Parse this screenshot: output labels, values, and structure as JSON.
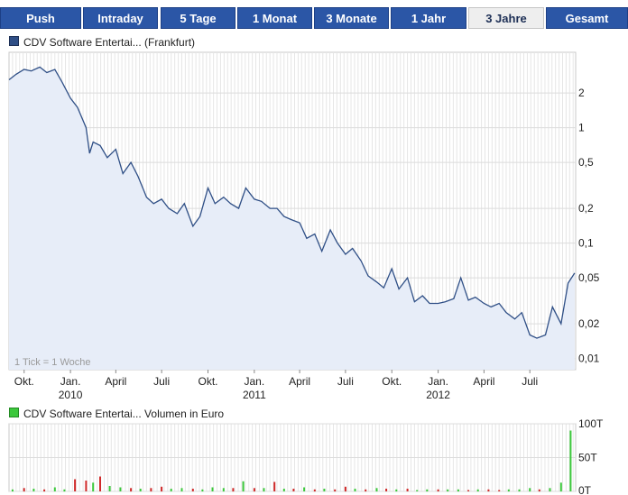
{
  "tabs": [
    "Push",
    "Intraday",
    "5 Tage",
    "1 Monat",
    "3 Monate",
    "1 Jahr",
    "3 Jahre",
    "Gesamt"
  ],
  "active_tab": "3 Jahre",
  "price_legend": "CDV Software Entertai... (Frankfurt)",
  "volume_legend": "CDV Software Entertai... Volumen in Euro",
  "tick_note": "1 Tick = 1 Woche",
  "colors": {
    "tab_bg": "#2b56a6",
    "line": "#2f4f86",
    "area": "#e7edf8",
    "vol_up": "#3cc83c",
    "vol_down": "#d02a2a"
  },
  "chart_data": [
    {
      "type": "area",
      "title": "CDV Software Entertai... (Frankfurt)",
      "y_scale": "log",
      "ylim": [
        0.008,
        4.5
      ],
      "y_ticks": [
        2,
        1,
        0.5,
        0.2,
        0.1,
        0.05,
        0.02,
        0.01
      ],
      "y_tick_labels": [
        "2",
        "1",
        "0,5",
        "0,2",
        "0,1",
        "0,05",
        "0,02",
        "0,01"
      ],
      "x_ticks": [
        {
          "label": "Okt.",
          "year": "",
          "date": "2009-10-01"
        },
        {
          "label": "Jan.",
          "year": "2010",
          "date": "2010-01-01"
        },
        {
          "label": "April",
          "year": "",
          "date": "2010-04-01"
        },
        {
          "label": "Juli",
          "year": "",
          "date": "2010-07-01"
        },
        {
          "label": "Okt.",
          "year": "",
          "date": "2010-10-01"
        },
        {
          "label": "Jan.",
          "year": "2011",
          "date": "2011-01-01"
        },
        {
          "label": "April",
          "year": "",
          "date": "2011-04-01"
        },
        {
          "label": "Juli",
          "year": "",
          "date": "2011-07-01"
        },
        {
          "label": "Okt.",
          "year": "",
          "date": "2011-10-01"
        },
        {
          "label": "Jan.",
          "year": "2012",
          "date": "2012-01-01"
        },
        {
          "label": "April",
          "year": "",
          "date": "2012-04-01"
        },
        {
          "label": "Juli",
          "year": "",
          "date": "2012-07-01"
        }
      ],
      "xlim": [
        "2009-09-01",
        "2012-09-30"
      ],
      "grid": true,
      "x": [
        "2009-09-01",
        "2009-09-15",
        "2009-10-01",
        "2009-10-15",
        "2009-11-01",
        "2009-11-15",
        "2009-12-01",
        "2009-12-15",
        "2010-01-01",
        "2010-01-15",
        "2010-02-01",
        "2010-02-08",
        "2010-02-15",
        "2010-03-01",
        "2010-03-15",
        "2010-04-01",
        "2010-04-15",
        "2010-05-01",
        "2010-05-15",
        "2010-06-01",
        "2010-06-15",
        "2010-07-01",
        "2010-07-15",
        "2010-08-01",
        "2010-08-15",
        "2010-09-01",
        "2010-09-15",
        "2010-10-01",
        "2010-10-15",
        "2010-11-01",
        "2010-11-15",
        "2010-12-01",
        "2010-12-15",
        "2011-01-01",
        "2011-01-15",
        "2011-02-01",
        "2011-02-15",
        "2011-03-01",
        "2011-03-15",
        "2011-04-01",
        "2011-04-15",
        "2011-05-01",
        "2011-05-15",
        "2011-06-01",
        "2011-06-15",
        "2011-07-01",
        "2011-07-15",
        "2011-08-01",
        "2011-08-15",
        "2011-09-01",
        "2011-09-15",
        "2011-10-01",
        "2011-10-15",
        "2011-11-01",
        "2011-11-15",
        "2011-12-01",
        "2011-12-15",
        "2012-01-01",
        "2012-01-15",
        "2012-02-01",
        "2012-02-15",
        "2012-03-01",
        "2012-03-15",
        "2012-04-01",
        "2012-04-15",
        "2012-05-01",
        "2012-05-15",
        "2012-06-01",
        "2012-06-15",
        "2012-07-01",
        "2012-07-15",
        "2012-08-01",
        "2012-08-15",
        "2012-09-01",
        "2012-09-15",
        "2012-09-28"
      ],
      "series": [
        {
          "values": [
            2.6,
            2.9,
            3.2,
            3.1,
            3.35,
            3.0,
            3.2,
            2.5,
            1.8,
            1.5,
            1.0,
            0.6,
            0.75,
            0.7,
            0.55,
            0.65,
            0.4,
            0.5,
            0.38,
            0.25,
            0.22,
            0.24,
            0.2,
            0.18,
            0.22,
            0.14,
            0.17,
            0.3,
            0.22,
            0.25,
            0.22,
            0.2,
            0.3,
            0.24,
            0.23,
            0.2,
            0.2,
            0.17,
            0.16,
            0.15,
            0.11,
            0.12,
            0.085,
            0.13,
            0.1,
            0.08,
            0.09,
            0.07,
            0.052,
            0.046,
            0.041,
            0.06,
            0.04,
            0.05,
            0.031,
            0.035,
            0.03,
            0.03,
            0.031,
            0.033,
            0.05,
            0.032,
            0.034,
            0.03,
            0.028,
            0.03,
            0.025,
            0.022,
            0.025,
            0.016,
            0.015,
            0.016,
            0.028,
            0.02,
            0.045,
            0.055
          ]
        }
      ]
    },
    {
      "type": "bar",
      "title": "CDV Software Entertai... Volumen in Euro",
      "ylim": [
        0,
        100
      ],
      "y_ticks": [
        100,
        50,
        0
      ],
      "y_tick_labels": [
        "100T",
        "50T",
        "0T"
      ],
      "x": [
        "2009-09-08",
        "2009-10-01",
        "2009-10-20",
        "2009-11-10",
        "2009-12-01",
        "2009-12-20",
        "2010-01-10",
        "2010-02-01",
        "2010-02-15",
        "2010-03-01",
        "2010-03-20",
        "2010-04-10",
        "2010-05-01",
        "2010-05-20",
        "2010-06-10",
        "2010-07-01",
        "2010-07-20",
        "2010-08-10",
        "2010-09-01",
        "2010-09-20",
        "2010-10-10",
        "2010-11-01",
        "2010-11-20",
        "2010-12-10",
        "2011-01-01",
        "2011-01-20",
        "2011-02-10",
        "2011-03-01",
        "2011-03-20",
        "2011-04-10",
        "2011-05-01",
        "2011-05-20",
        "2011-06-10",
        "2011-07-01",
        "2011-07-20",
        "2011-08-10",
        "2011-09-01",
        "2011-09-20",
        "2011-10-10",
        "2011-11-01",
        "2011-11-20",
        "2011-12-10",
        "2012-01-01",
        "2012-01-20",
        "2012-02-10",
        "2012-03-01",
        "2012-03-20",
        "2012-04-10",
        "2012-05-01",
        "2012-05-20",
        "2012-06-10",
        "2012-07-01",
        "2012-07-20",
        "2012-08-10",
        "2012-09-01",
        "2012-09-20"
      ],
      "series": [
        {
          "values": [
            3,
            5,
            4,
            3,
            6,
            3,
            18,
            16,
            13,
            22,
            8,
            6,
            5,
            4,
            5,
            7,
            4,
            5,
            4,
            3,
            6,
            5,
            5,
            15,
            5,
            5,
            14,
            4,
            4,
            6,
            3,
            4,
            3,
            7,
            4,
            3,
            5,
            4,
            3,
            4,
            2,
            3,
            3,
            3,
            3,
            2,
            3,
            3,
            2,
            3,
            3,
            5,
            3,
            5,
            13,
            90
          ],
          "up": [
            true,
            false,
            true,
            false,
            true,
            true,
            false,
            false,
            true,
            false,
            true,
            true,
            false,
            true,
            false,
            false,
            true,
            true,
            false,
            true,
            true,
            true,
            false,
            true,
            false,
            true,
            false,
            true,
            false,
            true,
            false,
            true,
            false,
            false,
            true,
            false,
            true,
            false,
            true,
            false,
            true,
            true,
            false,
            true,
            true,
            false,
            true,
            false,
            false,
            true,
            true,
            true,
            false,
            true,
            true,
            true
          ]
        }
      ]
    }
  ]
}
